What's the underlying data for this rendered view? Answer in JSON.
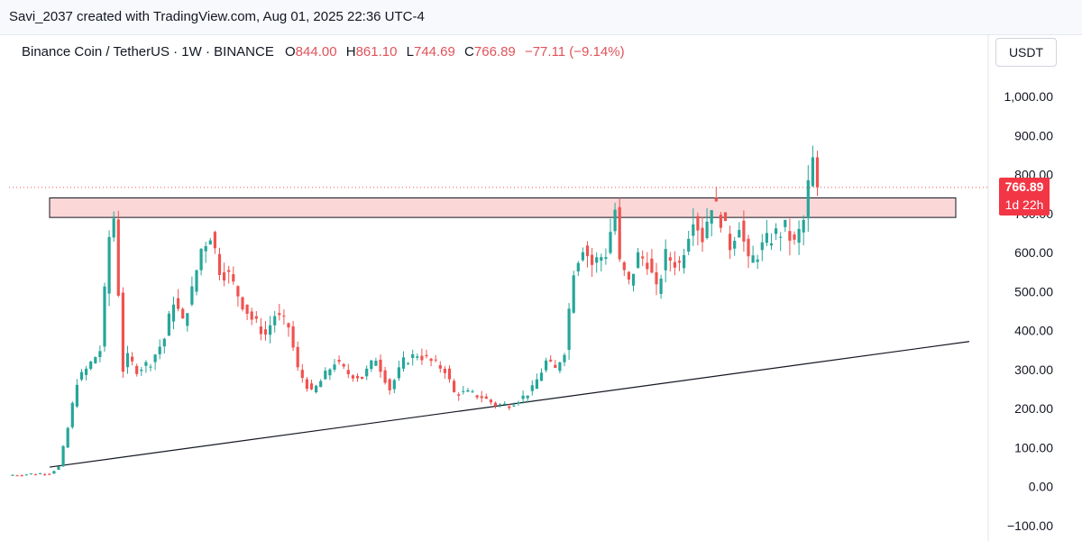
{
  "header": {
    "credit": "Savi_2037 created with TradingView.com, Aug 01, 2025 22:36 UTC-4"
  },
  "legend": {
    "symbol": "Binance Coin / TetherUS · 1W · BINANCE",
    "open_label": "O",
    "open_value": "844.00",
    "high_label": "H",
    "high_value": "861.10",
    "low_label": "L",
    "low_value": "744.69",
    "close_label": "C",
    "close_value": "766.89",
    "change": "−77.11 (−9.14%)"
  },
  "price_scale": {
    "currency": "USDT",
    "last_price": "766.89",
    "countdown": "1d 22h"
  },
  "colors": {
    "up": "#26a69a",
    "down": "#ef5350",
    "zone_fill": "#fcd7d7",
    "line": "#131722",
    "badge": "#f23645"
  },
  "chart_data": {
    "type": "candlestick",
    "symbol": "BNBUSDT",
    "interval": "1W",
    "y_ticks": [
      "1,000.00",
      "900.00",
      "800.00",
      "700.00",
      "600.00",
      "500.00",
      "400.00",
      "300.00",
      "200.00",
      "100.00",
      "0.00",
      "−100.00"
    ],
    "ylim": [
      -100,
      1000
    ],
    "close_path": [
      [
        0,
        30
      ],
      [
        8,
        35
      ],
      [
        10,
        50
      ],
      [
        12,
        150
      ],
      [
        14,
        270
      ],
      [
        16,
        300
      ],
      [
        19,
        350
      ],
      [
        21,
        640
      ],
      [
        22,
        690
      ],
      [
        23,
        500
      ],
      [
        24,
        300
      ],
      [
        25,
        330
      ],
      [
        27,
        300
      ],
      [
        30,
        320
      ],
      [
        33,
        380
      ],
      [
        35,
        480
      ],
      [
        37,
        420
      ],
      [
        39,
        500
      ],
      [
        41,
        610
      ],
      [
        43,
        650
      ],
      [
        45,
        560
      ],
      [
        47,
        540
      ],
      [
        50,
        470
      ],
      [
        52,
        430
      ],
      [
        55,
        390
      ],
      [
        57,
        440
      ],
      [
        60,
        410
      ],
      [
        62,
        300
      ],
      [
        65,
        240
      ],
      [
        67,
        270
      ],
      [
        70,
        320
      ],
      [
        73,
        290
      ],
      [
        76,
        280
      ],
      [
        79,
        330
      ],
      [
        82,
        250
      ],
      [
        85,
        320
      ],
      [
        88,
        340
      ],
      [
        91,
        320
      ],
      [
        94,
        300
      ],
      [
        96,
        240
      ],
      [
        99,
        240
      ],
      [
        102,
        230
      ],
      [
        105,
        210
      ],
      [
        108,
        210
      ],
      [
        111,
        230
      ],
      [
        113,
        250
      ],
      [
        116,
        320
      ],
      [
        118,
        300
      ],
      [
        120,
        350
      ],
      [
        122,
        560
      ],
      [
        124,
        620
      ],
      [
        126,
        570
      ],
      [
        129,
        600
      ],
      [
        131,
        710
      ],
      [
        132,
        570
      ],
      [
        134,
        520
      ],
      [
        136,
        590
      ],
      [
        138,
        580
      ],
      [
        140,
        500
      ],
      [
        142,
        590
      ],
      [
        145,
        570
      ],
      [
        148,
        700
      ],
      [
        150,
        640
      ],
      [
        152,
        730
      ],
      [
        154,
        690
      ],
      [
        156,
        620
      ],
      [
        158,
        680
      ],
      [
        160,
        570
      ],
      [
        162,
        600
      ],
      [
        165,
        640
      ],
      [
        168,
        660
      ],
      [
        170,
        620
      ],
      [
        172,
        680
      ],
      [
        173,
        770
      ],
      [
        174,
        844
      ],
      [
        175,
        766.89
      ]
    ],
    "resistance_zone": [
      690,
      740
    ],
    "trendline": [
      [
        0,
        50
      ],
      [
        205,
        372
      ]
    ]
  }
}
